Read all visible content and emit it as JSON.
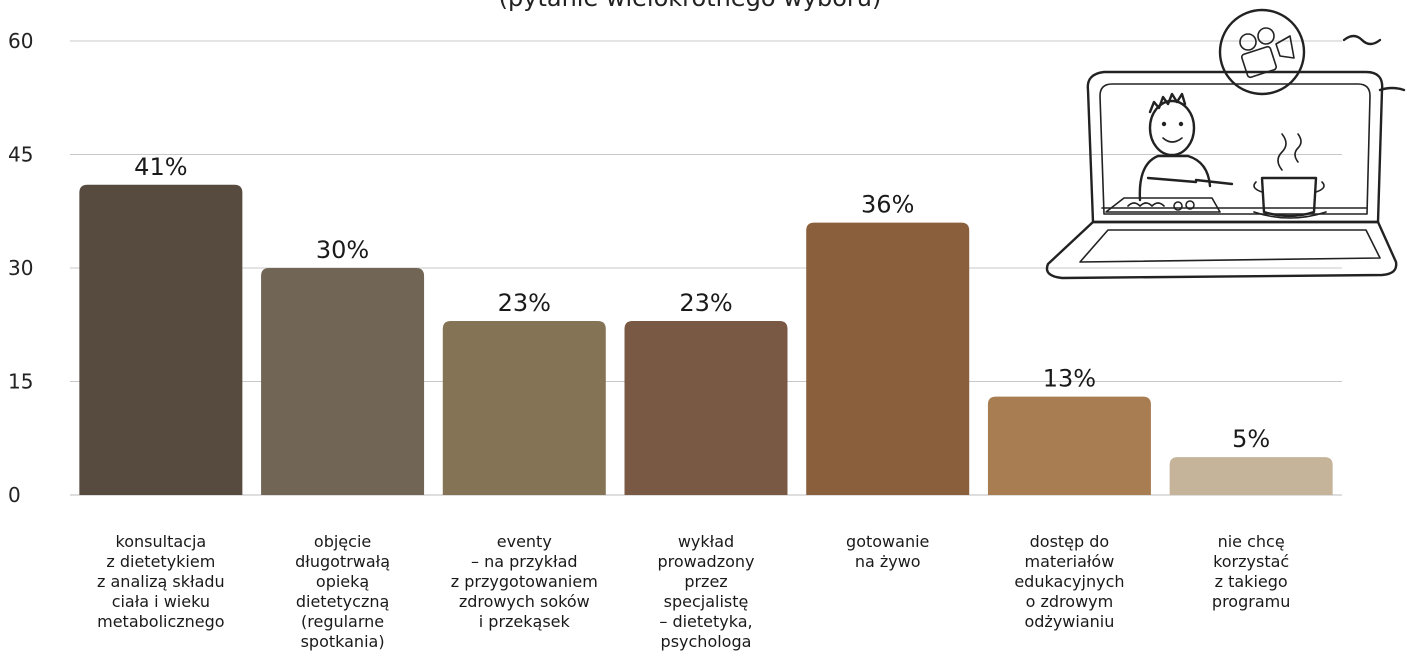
{
  "chart_data": {
    "type": "bar",
    "title": "(pytanie wielokrotnego wyboru)",
    "categories": [
      [
        "konsultacja",
        "z dietetykiem",
        "z analizą składu",
        "ciała i wieku",
        "metabolicznego"
      ],
      [
        "objęcie",
        "długotrwałą",
        "opieką",
        "dietetyczną",
        "(regularne",
        "spotkania)"
      ],
      [
        "eventy",
        "– na przykład",
        "z przygotowaniem",
        "zdrowych soków",
        "i przekąsek"
      ],
      [
        "wykład",
        "prowadzony",
        "przez",
        "specjalistę",
        "– dietetyka,",
        "psychologa"
      ],
      [
        "gotowanie",
        "na żywo"
      ],
      [
        "dostęp do",
        "materiałów",
        "edukacyjnych",
        "o zdrowym",
        "odżywianiu"
      ],
      [
        "nie chcę",
        "korzystać",
        "z takiego",
        "programu"
      ]
    ],
    "values": [
      41,
      30,
      23,
      23,
      36,
      13,
      5
    ],
    "value_labels": [
      "41%",
      "30%",
      "23%",
      "23%",
      "36%",
      "13%",
      "5%"
    ],
    "colors": [
      "#574a3e",
      "#716555",
      "#857356",
      "#7a5944",
      "#8a5f3b",
      "#a87d52",
      "#c5b49a"
    ],
    "ylim": [
      0,
      60
    ],
    "yticks": [
      0,
      15,
      30,
      45,
      60
    ],
    "grid": true,
    "illustration": "laptop-cooking-illustration"
  }
}
